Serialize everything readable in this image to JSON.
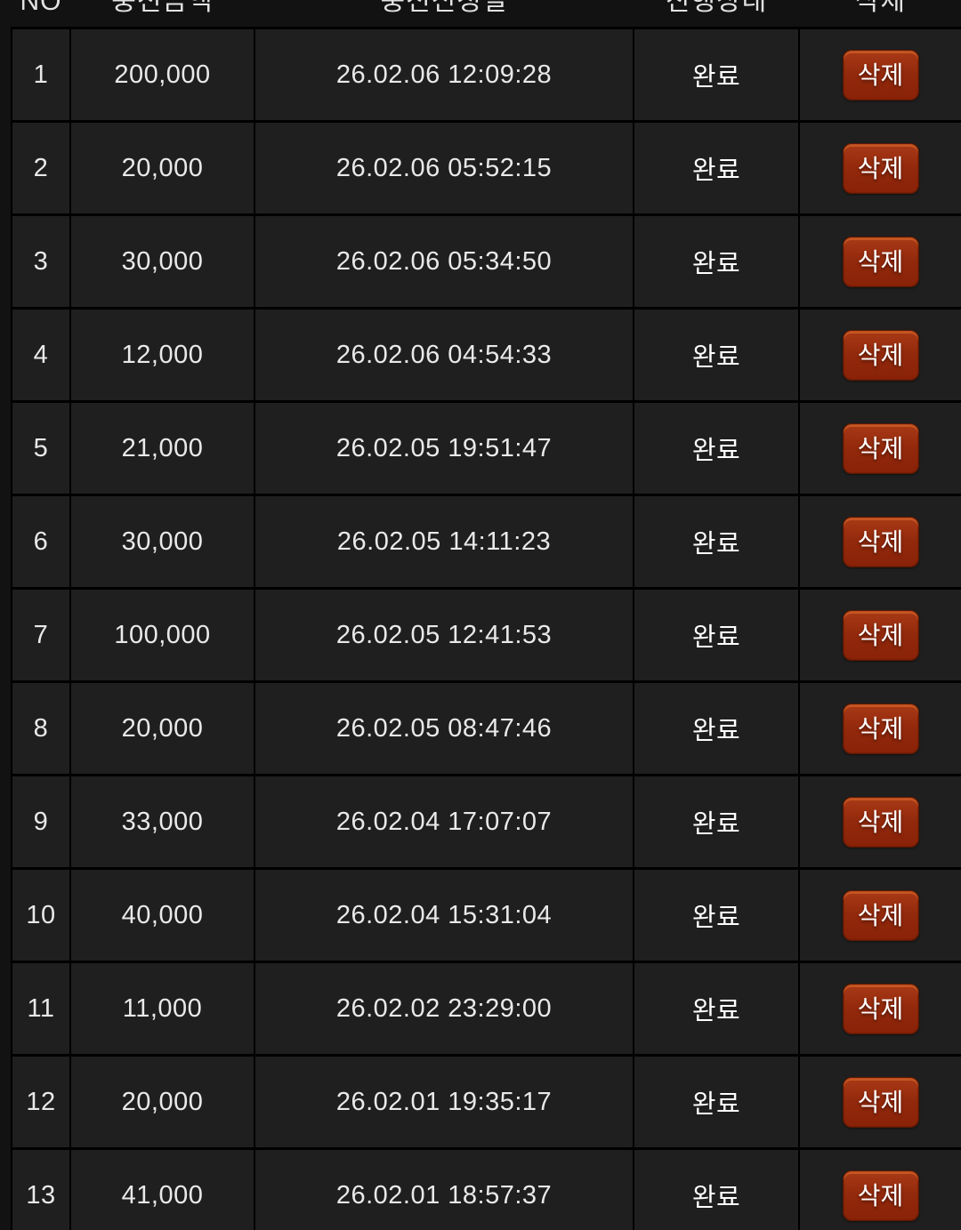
{
  "header": {
    "no": "NO",
    "amount": "충전금액",
    "datetime": "충전신청일",
    "status": "진행상태",
    "delete": "삭제"
  },
  "table": {
    "delete_button_label": "삭제",
    "status_complete_label": "완료",
    "rows": [
      {
        "no": "1",
        "amount": "200,000",
        "datetime": "26.02.06 12:09:28",
        "status": "완료"
      },
      {
        "no": "2",
        "amount": "20,000",
        "datetime": "26.02.06 05:52:15",
        "status": "완료"
      },
      {
        "no": "3",
        "amount": "30,000",
        "datetime": "26.02.06 05:34:50",
        "status": "완료"
      },
      {
        "no": "4",
        "amount": "12,000",
        "datetime": "26.02.06 04:54:33",
        "status": "완료"
      },
      {
        "no": "5",
        "amount": "21,000",
        "datetime": "26.02.05 19:51:47",
        "status": "완료"
      },
      {
        "no": "6",
        "amount": "30,000",
        "datetime": "26.02.05 14:11:23",
        "status": "완료"
      },
      {
        "no": "7",
        "amount": "100,000",
        "datetime": "26.02.05 12:41:53",
        "status": "완료"
      },
      {
        "no": "8",
        "amount": "20,000",
        "datetime": "26.02.05 08:47:46",
        "status": "완료"
      },
      {
        "no": "9",
        "amount": "33,000",
        "datetime": "26.02.04 17:07:07",
        "status": "완료"
      },
      {
        "no": "10",
        "amount": "40,000",
        "datetime": "26.02.04 15:31:04",
        "status": "완료"
      },
      {
        "no": "11",
        "amount": "11,000",
        "datetime": "26.02.02 23:29:00",
        "status": "완료"
      },
      {
        "no": "12",
        "amount": "20,000",
        "datetime": "26.02.01 19:35:17",
        "status": "완료"
      },
      {
        "no": "13",
        "amount": "41,000",
        "datetime": "26.02.01 18:57:37",
        "status": "완료"
      }
    ]
  },
  "colors": {
    "page_background": "#121212",
    "row_background": "#1f1f1f",
    "border": "#000000",
    "text": "#e9e9e9",
    "status_complete": "#ffffff",
    "delete_button_red": "#93290c",
    "delete_button_highlight": "#e07030"
  }
}
